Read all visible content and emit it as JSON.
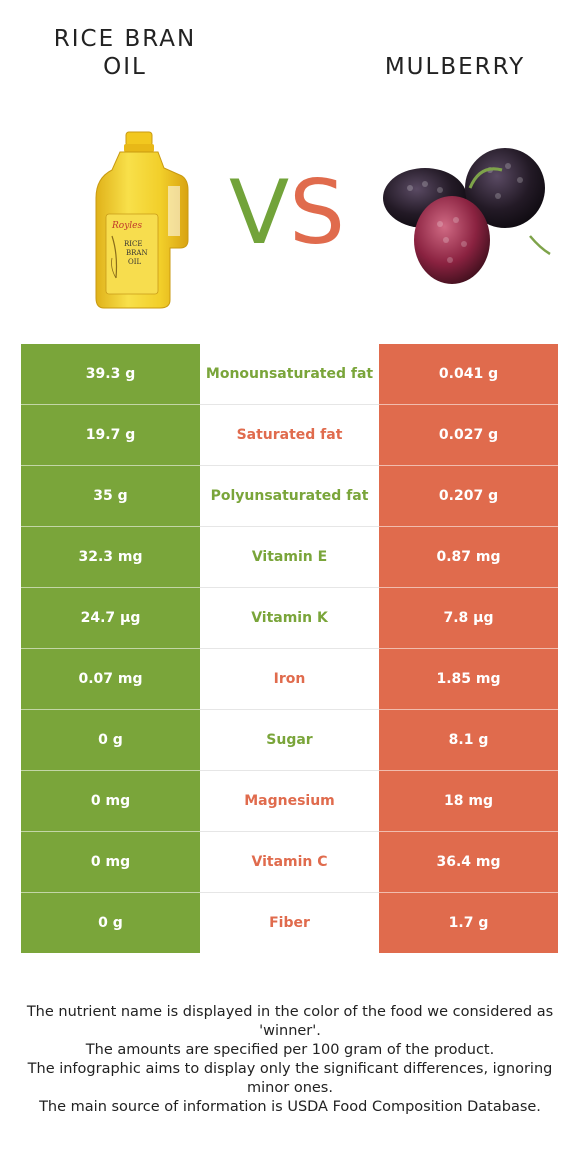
{
  "header": {
    "left_food": "RICE BRAN\nOIL",
    "right_food": "MULBERRY",
    "vs_v": "V",
    "vs_s": "S"
  },
  "bottle_label": {
    "line1": "RICE",
    "line2": "BRAN",
    "line3": "OIL"
  },
  "colors": {
    "left": "#7aa53a",
    "right": "#e06b4d"
  },
  "rows": [
    {
      "left": "39.3 g",
      "name": "Monounsaturated fat",
      "right": "0.041 g",
      "winner": "left"
    },
    {
      "left": "19.7 g",
      "name": "Saturated fat",
      "right": "0.027 g",
      "winner": "right"
    },
    {
      "left": "35 g",
      "name": "Polyunsaturated fat",
      "right": "0.207 g",
      "winner": "left"
    },
    {
      "left": "32.3 mg",
      "name": "Vitamin E",
      "right": "0.87 mg",
      "winner": "left"
    },
    {
      "left": "24.7 µg",
      "name": "Vitamin K",
      "right": "7.8 µg",
      "winner": "left"
    },
    {
      "left": "0.07 mg",
      "name": "Iron",
      "right": "1.85 mg",
      "winner": "right"
    },
    {
      "left": "0 g",
      "name": "Sugar",
      "right": "8.1 g",
      "winner": "left"
    },
    {
      "left": "0 mg",
      "name": "Magnesium",
      "right": "18 mg",
      "winner": "right"
    },
    {
      "left": "0 mg",
      "name": "Vitamin C",
      "right": "36.4 mg",
      "winner": "right"
    },
    {
      "left": "0 g",
      "name": "Fiber",
      "right": "1.7 g",
      "winner": "right"
    }
  ],
  "footer": {
    "line1": "The nutrient name is displayed in the color of the food we considered as 'winner'.",
    "line2": "The amounts are specified per 100 gram of the product.",
    "line3": "The infographic aims to display only the significant differences, ignoring minor ones.",
    "line4": "The main source of information is USDA Food Composition Database."
  }
}
